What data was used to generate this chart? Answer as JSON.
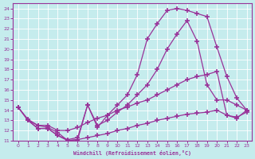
{
  "xlabel": "Windchill (Refroidissement éolien,°C)",
  "bg_color": "#c5eced",
  "line_color": "#993399",
  "grid_color": "#ffffff",
  "xlim": [
    -0.5,
    23.5
  ],
  "ylim": [
    11,
    24.5
  ],
  "xticks": [
    0,
    1,
    2,
    3,
    4,
    5,
    6,
    7,
    8,
    9,
    10,
    11,
    12,
    13,
    14,
    15,
    16,
    17,
    18,
    19,
    20,
    21,
    22,
    23
  ],
  "yticks": [
    11,
    12,
    13,
    14,
    15,
    16,
    17,
    18,
    19,
    20,
    21,
    22,
    23,
    24
  ],
  "curve_big_x": [
    1,
    2,
    3,
    4,
    5,
    6,
    7,
    8,
    9,
    10,
    11,
    12,
    13,
    14,
    15,
    16,
    17,
    18,
    19,
    20,
    21,
    22,
    23
  ],
  "curve_big_y": [
    13.0,
    12.2,
    12.2,
    11.5,
    11.0,
    11.1,
    14.5,
    12.3,
    13.5,
    14.5,
    15.5,
    17.5,
    21.0,
    22.5,
    23.8,
    24.0,
    23.8,
    23.5,
    23.2,
    20.2,
    17.3,
    15.2,
    14.0
  ],
  "curve_med_x": [
    0,
    1,
    2,
    3,
    4,
    5,
    6,
    7,
    8,
    9,
    10,
    11,
    12,
    13,
    14,
    15,
    16,
    17,
    18,
    19,
    20,
    21,
    22,
    23
  ],
  "curve_med_y": [
    14.3,
    13.0,
    12.2,
    12.2,
    11.5,
    11.1,
    11.3,
    14.5,
    12.5,
    13.0,
    13.8,
    14.5,
    15.5,
    16.5,
    18.0,
    20.0,
    21.5,
    22.8,
    20.8,
    16.5,
    15.0,
    15.0,
    14.5,
    14.0
  ],
  "curve_diag_x": [
    0,
    1,
    2,
    3,
    4,
    5,
    6,
    7,
    8,
    9,
    10,
    11,
    12,
    13,
    14,
    15,
    16,
    17,
    18,
    19,
    20,
    21,
    22,
    23
  ],
  "curve_diag_y": [
    14.3,
    13.0,
    12.5,
    12.5,
    12.0,
    12.0,
    12.3,
    12.8,
    13.2,
    13.5,
    14.0,
    14.3,
    14.7,
    15.0,
    15.5,
    16.0,
    16.5,
    17.0,
    17.3,
    17.5,
    17.8,
    13.5,
    13.2,
    14.0
  ],
  "curve_low_x": [
    0,
    1,
    2,
    3,
    4,
    5,
    6,
    7,
    8,
    9,
    10,
    11,
    12,
    13,
    14,
    15,
    16,
    17,
    18,
    19,
    20,
    21,
    22,
    23
  ],
  "curve_low_y": [
    14.3,
    13.1,
    12.5,
    12.3,
    11.8,
    11.0,
    11.1,
    11.3,
    11.5,
    11.7,
    12.0,
    12.2,
    12.5,
    12.7,
    13.0,
    13.2,
    13.4,
    13.6,
    13.7,
    13.8,
    14.0,
    13.5,
    13.3,
    13.8
  ]
}
